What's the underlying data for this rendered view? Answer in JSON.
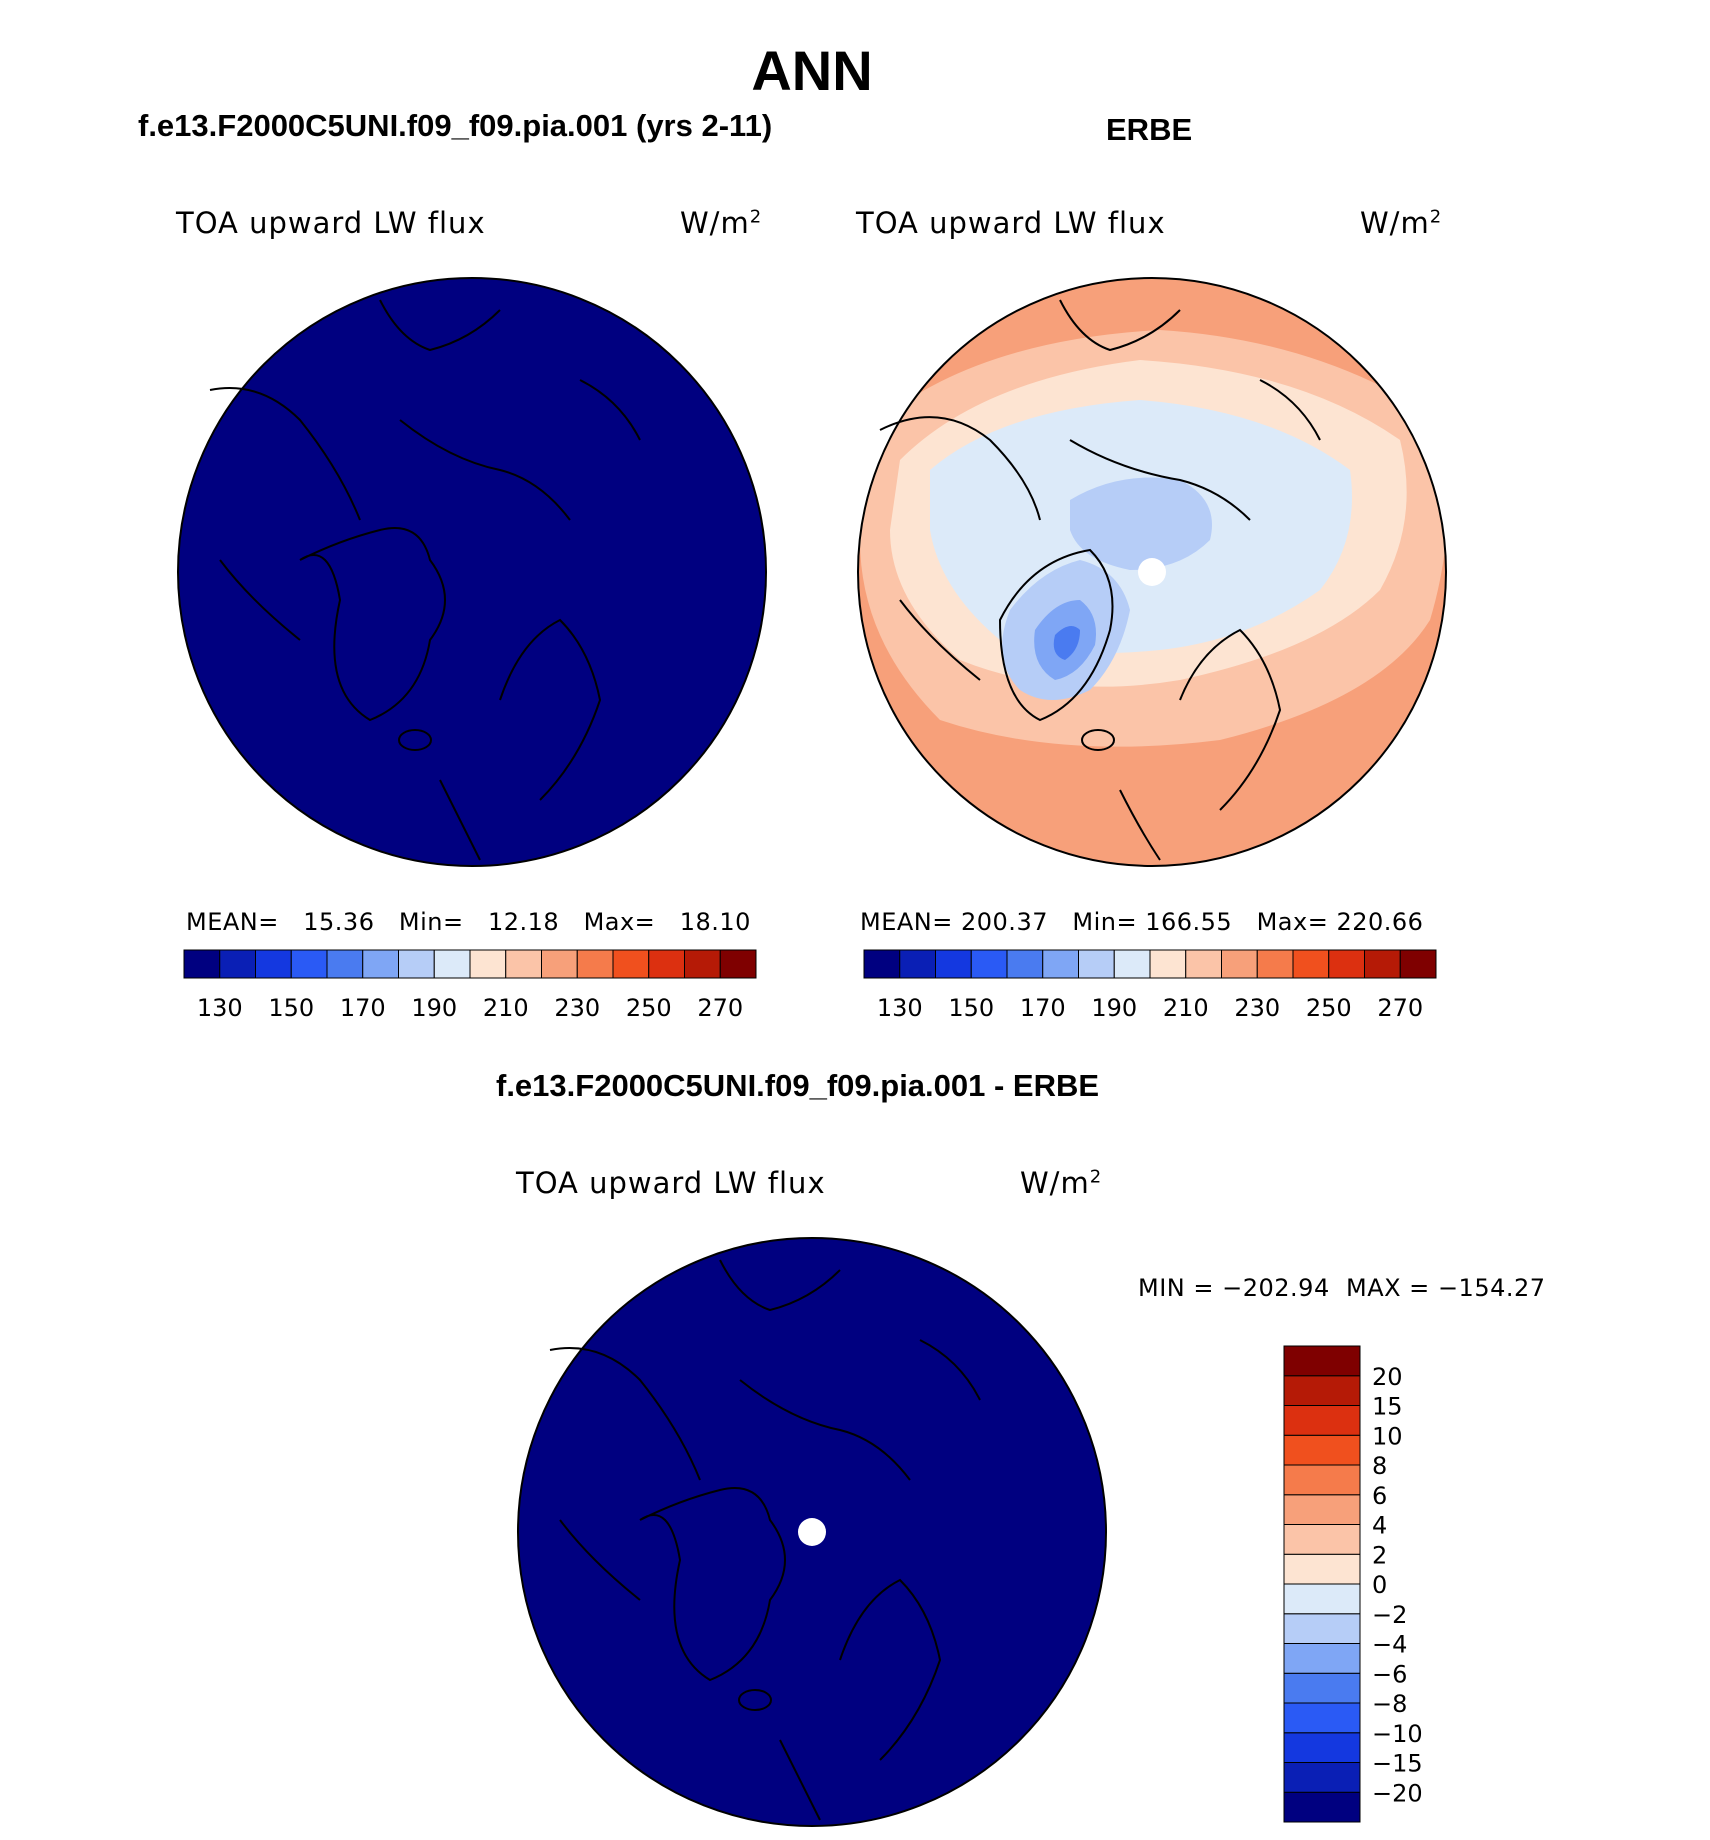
{
  "page": {
    "title": "ANN"
  },
  "chart_data": [
    {
      "type": "heatmap",
      "id": "model",
      "title": "f.e13.F2000C5UNI.f09_f09.pia.001 (yrs 2-11)",
      "variable": "TOA upward LW flux",
      "units_base": "W/m",
      "units_exp": "2",
      "projection": "north polar stereographic",
      "stats": {
        "mean_label": "MEAN=",
        "mean": "15.36",
        "min_label": "Min=",
        "min": "12.18",
        "max_label": "Max=",
        "max": "18.10"
      },
      "field_description": "uniform lowest contour level across the entire domain",
      "colorbar": {
        "orientation": "horizontal",
        "tick_labels": [
          "130",
          "150",
          "170",
          "190",
          "210",
          "230",
          "250",
          "270"
        ],
        "colors": [
          "#000080",
          "#0a1fb5",
          "#1438e0",
          "#2a5af5",
          "#4a7bf0",
          "#7fa6f5",
          "#b6cdf7",
          "#dceaf9",
          "#fde4d2",
          "#fbc4a8",
          "#f7a07a",
          "#f57b4b",
          "#f0501e",
          "#dc3010",
          "#b51a06",
          "#7f0000"
        ]
      }
    },
    {
      "type": "heatmap",
      "id": "obs",
      "title": "ERBE",
      "variable": "TOA upward LW flux",
      "units_base": "W/m",
      "units_exp": "2",
      "projection": "north polar stereographic",
      "stats": {
        "mean_label": "MEAN=",
        "mean": "200.37",
        "min_label": "Min=",
        "min": "166.55",
        "max_label": "Max=",
        "max": "220.66"
      },
      "field_description": "lowest values over Greenland and central Arctic, rising toward lower latitudes",
      "colorbar": {
        "orientation": "horizontal",
        "tick_labels": [
          "130",
          "150",
          "170",
          "190",
          "210",
          "230",
          "250",
          "270"
        ],
        "colors": [
          "#000080",
          "#0a1fb5",
          "#1438e0",
          "#2a5af5",
          "#4a7bf0",
          "#7fa6f5",
          "#b6cdf7",
          "#dceaf9",
          "#fde4d2",
          "#fbc4a8",
          "#f7a07a",
          "#f57b4b",
          "#f0501e",
          "#dc3010",
          "#b51a06",
          "#7f0000"
        ]
      }
    },
    {
      "type": "heatmap",
      "id": "diff",
      "title": "f.e13.F2000C5UNI.f09_f09.pia.001 - ERBE",
      "variable": "TOA upward LW flux",
      "units_base": "W/m",
      "units_exp": "2",
      "projection": "north polar stereographic",
      "stats": {
        "min_label": "MIN =",
        "min": "−202.94",
        "max_label": "MAX =",
        "max": "−154.27"
      },
      "field_description": "uniform lowest contour level across the entire domain",
      "colorbar": {
        "orientation": "vertical",
        "tick_labels": [
          "−20",
          "−15",
          "−10",
          "−8",
          "−6",
          "−4",
          "−2",
          "0",
          "2",
          "4",
          "6",
          "8",
          "10",
          "15",
          "20"
        ],
        "colors": [
          "#000080",
          "#0a1fb5",
          "#1438e0",
          "#2a5af5",
          "#4a7bf0",
          "#7fa6f5",
          "#b6cdf7",
          "#dceaf9",
          "#fde4d2",
          "#fbc4a8",
          "#f7a07a",
          "#f57b4b",
          "#f0501e",
          "#dc3010",
          "#b51a06",
          "#7f0000"
        ]
      }
    }
  ]
}
